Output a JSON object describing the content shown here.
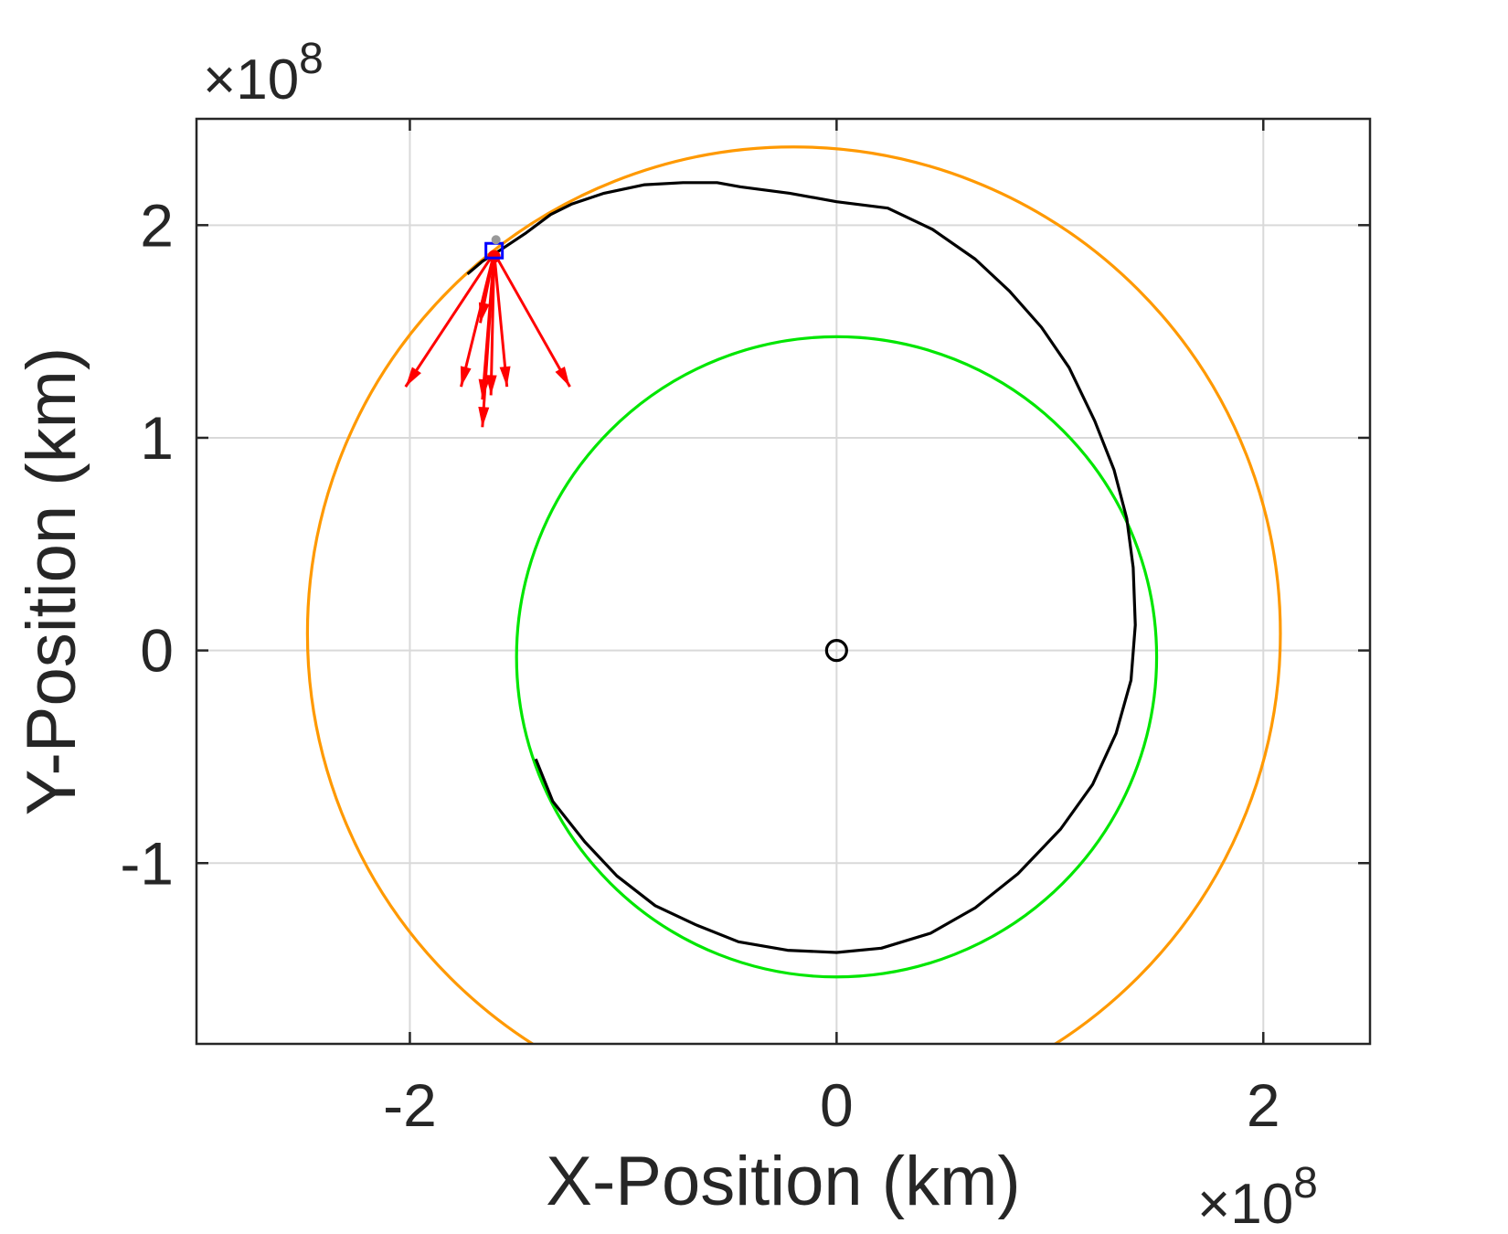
{
  "chart_data": {
    "type": "line",
    "title": "",
    "xlabel": "X-Position (km)",
    "ylabel": "Y-Position (km)",
    "x_exponent_label": "×10",
    "x_exponent_power": "8",
    "y_exponent_label": "×10",
    "y_exponent_power": "8",
    "xlim": [
      -3.0,
      2.5
    ],
    "ylim": [
      -1.85,
      2.5
    ],
    "xticks": [
      -2,
      0,
      2
    ],
    "xtick_labels": [
      "-2",
      "0",
      "2"
    ],
    "yticks": [
      -1,
      0,
      1,
      2
    ],
    "ytick_labels": [
      "-1",
      "0",
      "1",
      "2"
    ],
    "grid": true,
    "unit_scale": 100000000,
    "colors": {
      "earth_orbit": "#00e600",
      "mars_orbit": "#ff9900",
      "trajectory": "#000000",
      "thrust_vectors": "#ff0000",
      "spacecraft_marker": "#0000ff",
      "sun_marker": "#000000",
      "grid": "#d9d9d9",
      "axes": "#262626"
    },
    "series": [
      {
        "color_key": "earth_orbit",
        "shape": "circle",
        "center": [
          0.0,
          -0.03
        ],
        "radius": 1.5
      },
      {
        "color_key": "mars_orbit",
        "shape": "circle",
        "center": [
          -0.2,
          0.08
        ],
        "radius": 2.28,
        "clip_to_axes": true
      },
      {
        "color_key": "trajectory",
        "points": [
          [
            -1.41,
            -0.51
          ],
          [
            -1.33,
            -0.71
          ],
          [
            -1.18,
            -0.9
          ],
          [
            -1.03,
            -1.06
          ],
          [
            -0.85,
            -1.2
          ],
          [
            -0.66,
            -1.29
          ],
          [
            -0.46,
            -1.37
          ],
          [
            -0.23,
            -1.41
          ],
          [
            0.0,
            -1.42
          ],
          [
            0.21,
            -1.4
          ],
          [
            0.44,
            -1.33
          ],
          [
            0.65,
            -1.21
          ],
          [
            0.85,
            -1.05
          ],
          [
            1.05,
            -0.84
          ],
          [
            1.2,
            -0.63
          ],
          [
            1.31,
            -0.39
          ],
          [
            1.38,
            -0.14
          ],
          [
            1.4,
            0.12
          ],
          [
            1.39,
            0.39
          ],
          [
            1.36,
            0.62
          ],
          [
            1.3,
            0.85
          ],
          [
            1.21,
            1.08
          ],
          [
            1.09,
            1.33
          ],
          [
            0.96,
            1.52
          ],
          [
            0.81,
            1.69
          ],
          [
            0.65,
            1.84
          ],
          [
            0.45,
            1.98
          ],
          [
            0.24,
            2.08
          ],
          [
            0.0,
            2.11
          ],
          [
            -0.22,
            2.15
          ],
          [
            -0.45,
            2.18
          ],
          [
            -0.56,
            2.2
          ],
          [
            -0.72,
            2.2
          ],
          [
            -0.9,
            2.19
          ],
          [
            -1.09,
            2.15
          ],
          [
            -1.24,
            2.1
          ],
          [
            -1.34,
            2.05
          ],
          [
            -1.46,
            1.96
          ],
          [
            -1.58,
            1.88
          ],
          [
            -1.66,
            1.83
          ],
          [
            -1.73,
            1.77
          ]
        ]
      }
    ],
    "sun": [
      0.0,
      0.0
    ],
    "spacecraft": [
      -1.605,
      1.88
    ],
    "thrust_vectors": {
      "origin": [
        -1.605,
        1.87
      ],
      "tips": [
        [
          -2.02,
          1.24
        ],
        [
          -1.76,
          1.24
        ],
        [
          -1.66,
          1.05
        ],
        [
          -1.66,
          1.18
        ],
        [
          -1.62,
          1.2
        ],
        [
          -1.545,
          1.24
        ],
        [
          -1.25,
          1.24
        ],
        [
          -1.67,
          1.54
        ]
      ]
    }
  }
}
